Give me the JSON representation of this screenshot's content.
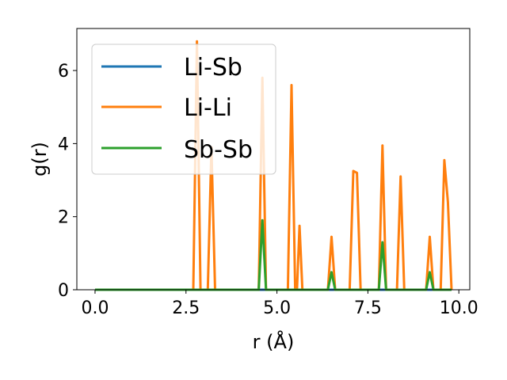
{
  "chart_data": {
    "type": "line",
    "xlabel": "r (Å)",
    "ylabel": "g(r)",
    "xlim": [
      -0.5,
      10.3
    ],
    "ylim": [
      0,
      7.15
    ],
    "xticks": [
      0.0,
      2.5,
      5.0,
      7.5,
      10.0
    ],
    "xtick_labels": [
      "0.0",
      "2.5",
      "5.0",
      "7.5",
      "10.0"
    ],
    "yticks": [
      0,
      2,
      4,
      6
    ],
    "ytick_labels": [
      "0",
      "2",
      "4",
      "6"
    ],
    "grid": false,
    "legend_position": "top-left",
    "series": [
      {
        "name": "Li-Sb",
        "color": "#1f77b4",
        "points": [
          [
            0,
            0
          ],
          [
            9.8,
            0
          ]
        ]
      },
      {
        "name": "Li-Li",
        "color": "#ff7f0e",
        "points": [
          [
            0,
            0
          ],
          [
            2.7,
            0
          ],
          [
            2.8,
            6.8
          ],
          [
            2.9,
            0
          ],
          [
            3.1,
            0
          ],
          [
            3.2,
            3.9
          ],
          [
            3.3,
            0
          ],
          [
            4.5,
            0
          ],
          [
            4.6,
            5.8
          ],
          [
            4.7,
            0
          ],
          [
            5.3,
            0
          ],
          [
            5.4,
            5.6
          ],
          [
            5.5,
            0
          ],
          [
            5.55,
            0
          ],
          [
            5.62,
            1.75
          ],
          [
            5.7,
            0
          ],
          [
            6.4,
            0
          ],
          [
            6.5,
            1.45
          ],
          [
            6.6,
            0
          ],
          [
            7.0,
            0
          ],
          [
            7.1,
            3.25
          ],
          [
            7.2,
            3.2
          ],
          [
            7.3,
            0
          ],
          [
            7.8,
            0
          ],
          [
            7.9,
            3.95
          ],
          [
            8.0,
            0
          ],
          [
            8.3,
            0
          ],
          [
            8.4,
            3.1
          ],
          [
            8.5,
            0
          ],
          [
            9.1,
            0
          ],
          [
            9.2,
            1.45
          ],
          [
            9.3,
            0
          ],
          [
            9.5,
            0
          ],
          [
            9.6,
            3.55
          ],
          [
            9.7,
            2.4
          ],
          [
            9.8,
            0
          ]
        ]
      },
      {
        "name": "Sb-Sb",
        "color": "#2ca02c",
        "points": [
          [
            0,
            0
          ],
          [
            4.5,
            0
          ],
          [
            4.6,
            1.9
          ],
          [
            4.7,
            0
          ],
          [
            6.4,
            0
          ],
          [
            6.5,
            0.48
          ],
          [
            6.6,
            0
          ],
          [
            7.8,
            0
          ],
          [
            7.9,
            1.3
          ],
          [
            8.0,
            0
          ],
          [
            9.1,
            0
          ],
          [
            9.2,
            0.48
          ],
          [
            9.3,
            0
          ],
          [
            9.8,
            0
          ]
        ]
      }
    ]
  }
}
